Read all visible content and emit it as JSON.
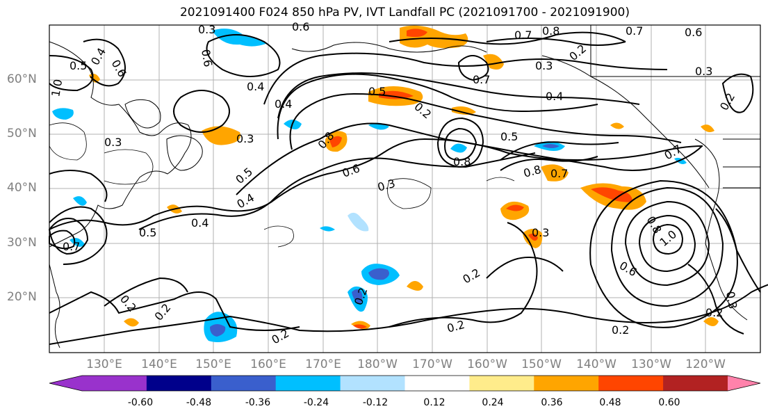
{
  "title": "2021091400 F024 850 hPa PV, IVT Landfall PC (2021091700 - 2021091900)",
  "lat_labels": [
    "60°N",
    "50°N",
    "40°N",
    "30°N",
    "20°N"
  ],
  "lon_labels": [
    "130°E",
    "140°E",
    "150°E",
    "160°E",
    "170°E",
    "180°W",
    "170°W",
    "160°W",
    "150°W",
    "140°W",
    "130°W",
    "120°W"
  ],
  "colorbar": {
    "ticks": [
      "-0.60",
      "-0.48",
      "-0.36",
      "-0.24",
      "-0.12",
      "0.12",
      "0.24",
      "0.36",
      "0.48",
      "0.60"
    ],
    "colors": [
      "#9932cc",
      "#00008b",
      "#3a5fcd",
      "#00bfff",
      "#b2e2ff",
      "#ffffff",
      "#ffec8b",
      "#ffa500",
      "#ff4500",
      "#b22222",
      "#ff82ab"
    ]
  },
  "contour_labels": [
    "0.2",
    "0.3",
    "0.4",
    "0.5",
    "0.6",
    "0.7",
    "0.8",
    "1.0"
  ]
}
